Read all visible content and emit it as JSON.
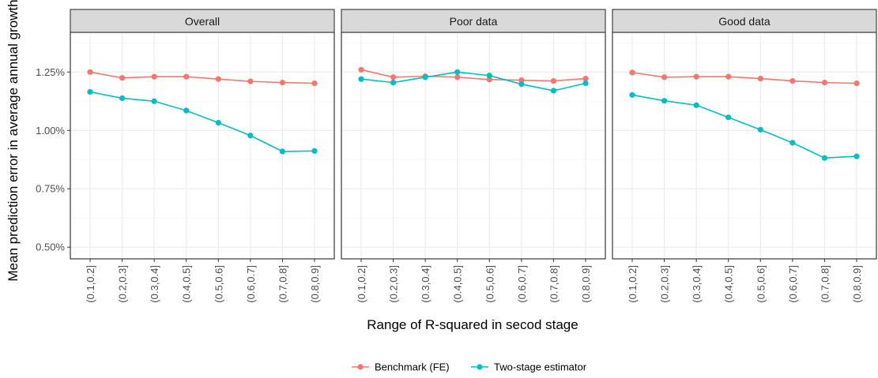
{
  "chart_data": {
    "type": "line",
    "xlabel": "Range of R-squared in secod stage",
    "ylabel": "Mean prediction error in average annual growth",
    "categories": [
      "(0.1,0.2]",
      "(0.2,0.3]",
      "(0.3,0.4]",
      "(0.4,0.5]",
      "(0.5,0.6]",
      "(0.6,0.7]",
      "(0.7,0.8]",
      "(0.8,0.9]"
    ],
    "ylim": [
      0.45,
      1.42
    ],
    "yticks": [
      0.5,
      0.75,
      1.0,
      1.25
    ],
    "ytick_labels": [
      "0.50%",
      "0.75%",
      "1.00%",
      "1.25%"
    ],
    "grid": true,
    "legend_position": "bottom",
    "series_colors": {
      "Benchmark (FE)": "#F8766D",
      "Two-stage estimator": "#00BFC4"
    },
    "legend": [
      "Benchmark (FE)",
      "Two-stage estimator"
    ],
    "panels": [
      {
        "title": "Overall",
        "series": [
          {
            "name": "Benchmark (FE)",
            "values": [
              1.25,
              1.225,
              1.23,
              1.23,
              1.22,
              1.21,
              1.205,
              1.202
            ]
          },
          {
            "name": "Two-stage estimator",
            "values": [
              1.165,
              1.138,
              1.125,
              1.085,
              1.033,
              0.978,
              0.91,
              0.912
            ]
          }
        ]
      },
      {
        "title": "Poor data",
        "series": [
          {
            "name": "Benchmark (FE)",
            "values": [
              1.26,
              1.228,
              1.232,
              1.228,
              1.218,
              1.215,
              1.212,
              1.222
            ]
          },
          {
            "name": "Two-stage estimator",
            "values": [
              1.22,
              1.205,
              1.228,
              1.25,
              1.235,
              1.198,
              1.17,
              1.202
            ]
          }
        ]
      },
      {
        "title": "Good data",
        "series": [
          {
            "name": "Benchmark (FE)",
            "values": [
              1.248,
              1.228,
              1.23,
              1.23,
              1.222,
              1.212,
              1.205,
              1.202
            ]
          },
          {
            "name": "Two-stage estimator",
            "values": [
              1.152,
              1.127,
              1.108,
              1.056,
              1.003,
              0.947,
              0.882,
              0.889
            ]
          }
        ]
      }
    ]
  }
}
